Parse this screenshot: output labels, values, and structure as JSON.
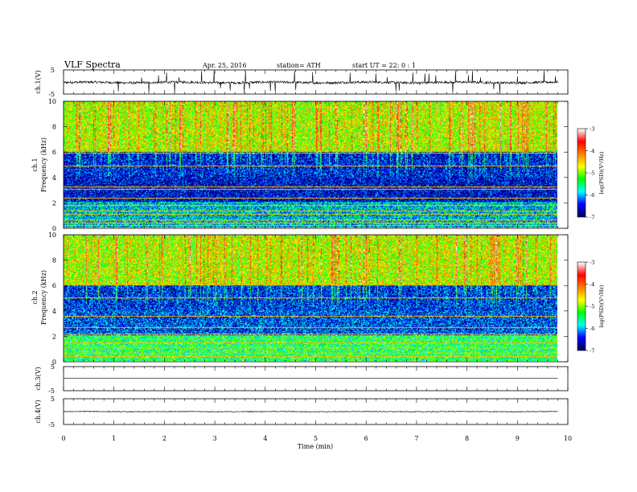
{
  "header": {
    "title": "VLF  Spectra",
    "date": "Apr. 25, 2016",
    "station": "station= ATH",
    "start": "start  UT =   22: 0   : 1"
  },
  "chart_data": [
    {
      "type": "line",
      "panel": "ch1-waveform",
      "ylabel": "ch.1(V)",
      "yticks": [
        "5",
        "-5"
      ],
      "ylim": [
        -5,
        5
      ],
      "series": [
        {
          "approx_level": -0.2,
          "noise_amplitude": 0.5,
          "spike_count": 40
        }
      ]
    },
    {
      "type": "heatmap",
      "panel": "ch1-spectrogram",
      "ylabel_top": "ch.1",
      "ylabel_bottom": "Frequency  (kHz)",
      "yticks": [
        "10",
        "8",
        "6",
        "4",
        "2",
        "0"
      ],
      "ylim_khz": [
        0,
        10
      ],
      "colorbar": {
        "label": "log(PSD)(V²/Hz)",
        "ticks": [
          "-3",
          "-4",
          "-5",
          "-6",
          "-7"
        ],
        "range": [
          -7,
          -3
        ],
        "colors": [
          "#000060",
          "#0000ff",
          "#00ffff",
          "#00ff00",
          "#ffff00",
          "#ff8000",
          "#ff0000",
          "#ffffff"
        ]
      },
      "bands": [
        {
          "from_khz": 6.0,
          "to_khz": 10.0,
          "level": -4.8
        },
        {
          "from_khz": 4.0,
          "to_khz": 6.0,
          "level": -6.5
        },
        {
          "from_khz": 2.0,
          "to_khz": 4.0,
          "level": -6.6
        },
        {
          "from_khz": 0.0,
          "to_khz": 2.0,
          "level": -5.9
        }
      ],
      "tone_lines_khz": [
        0.15,
        0.3,
        0.6,
        1.0,
        1.3,
        1.7,
        2.3,
        3.0,
        3.2,
        4.9,
        5.9
      ]
    },
    {
      "type": "heatmap",
      "panel": "ch2-spectrogram",
      "ylabel_top": "ch.2",
      "ylabel_bottom": "Frequency  (kHz)",
      "yticks": [
        "10",
        "8",
        "6",
        "4",
        "2",
        "0"
      ],
      "ylim_khz": [
        0,
        10
      ],
      "colorbar": {
        "label": "log(PSD)(V²/Hz)",
        "ticks": [
          "-3",
          "-4",
          "-5",
          "-6",
          "-7"
        ],
        "range": [
          -7,
          -3
        ],
        "colors": [
          "#000060",
          "#0000ff",
          "#00ffff",
          "#00ff00",
          "#ffff00",
          "#ff8000",
          "#ff0000",
          "#ffffff"
        ]
      },
      "bands": [
        {
          "from_khz": 6.0,
          "to_khz": 10.0,
          "level": -4.8
        },
        {
          "from_khz": 4.0,
          "to_khz": 6.0,
          "level": -6.4
        },
        {
          "from_khz": 2.0,
          "to_khz": 4.0,
          "level": -6.3
        },
        {
          "from_khz": 0.0,
          "to_khz": 2.0,
          "level": -5.4
        }
      ],
      "tone_lines_khz": [
        0.3,
        0.6,
        1.0,
        1.4,
        2.1,
        2.6,
        3.5,
        5.0,
        6.0
      ]
    },
    {
      "type": "line",
      "panel": "ch3-waveform",
      "ylabel": "ch.3(V)",
      "yticks": [
        "5",
        "-5"
      ],
      "ylim": [
        -5,
        5
      ],
      "series": [
        {
          "approx_level": 0.2,
          "noise_amplitude": 0.0,
          "spike_count": 0
        }
      ]
    },
    {
      "type": "line",
      "panel": "ch4-waveform",
      "ylabel": "ch.4(V)",
      "yticks": [
        "5",
        "-5"
      ],
      "ylim": [
        -5,
        5
      ],
      "series": [
        {
          "approx_level": 0.0,
          "noise_amplitude": 0.15,
          "spike_count": 0
        }
      ]
    }
  ],
  "xaxis": {
    "label": "Time  (min)",
    "ticks": [
      "0",
      "1",
      "2",
      "3",
      "4",
      "5",
      "6",
      "7",
      "8",
      "9",
      "10"
    ],
    "xlim": [
      0,
      10
    ],
    "data_end_min": 9.8
  }
}
